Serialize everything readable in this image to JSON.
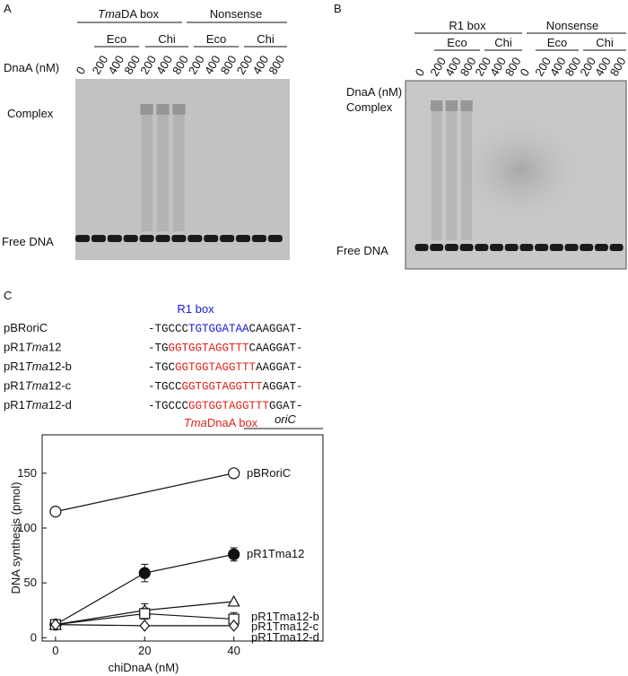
{
  "panel_a": {
    "letter": "A",
    "group_1": {
      "italic": "Tma",
      "rest": "DA box"
    },
    "group_2": "Nonsense",
    "subgroups": [
      "Eco",
      "Chi",
      "Eco",
      "Chi"
    ],
    "axis_label": "DnaA (nM)",
    "lanes": [
      "0",
      "200",
      "400",
      "800",
      "200",
      "400",
      "800",
      "200",
      "400",
      "800",
      "200",
      "400",
      "800"
    ],
    "complex_label": "Complex",
    "free_label": "Free DNA"
  },
  "panel_b": {
    "letter": "B",
    "group_1": "R1 box",
    "group_2": "Nonsense",
    "subgroups": [
      "Eco",
      "Chi",
      "Eco",
      "Chi"
    ],
    "axis_label": "DnaA (nM)",
    "lanes": [
      "0",
      "200",
      "400",
      "800",
      "200",
      "400",
      "800",
      "0",
      "200",
      "400",
      "800",
      "200",
      "400",
      "800"
    ],
    "complex_label": "Complex",
    "free_label": "Free DNA"
  },
  "panel_c": {
    "letter": "C",
    "r1_label": "R1 box",
    "box_label": {
      "italic": "Tma",
      "rest": "DnaA box"
    },
    "rows": [
      {
        "name": [
          "pBRoriC",
          "",
          ""
        ],
        "seq": [
          "-TGCCC",
          "TGTGGATAA",
          "CAAGGAT-"
        ],
        "color": "#1a1ad6"
      },
      {
        "name": [
          "pR1",
          "Tma",
          "12"
        ],
        "seq": [
          "-TG",
          "GGTGGTAGGTTT",
          "CAAGGAT-"
        ],
        "color": "#e0241c"
      },
      {
        "name": [
          "pR1",
          "Tma",
          "12-b"
        ],
        "seq": [
          "-TGC",
          "GGTGGTAGGTTT",
          "AAGGAT-"
        ],
        "color": "#e0241c"
      },
      {
        "name": [
          "pR1",
          "Tma",
          "12-c"
        ],
        "seq": [
          "-TGCC",
          "GGTGGTAGGTTT",
          "AGGAT-"
        ],
        "color": "#e0241c"
      },
      {
        "name": [
          "pR1",
          "Tma",
          "12-d"
        ],
        "seq": [
          "-TGCCC",
          "GGTGGTAGGTTT",
          "GGAT-"
        ],
        "color": "#e0241c"
      }
    ]
  },
  "chart_data": {
    "type": "line",
    "xlabel": "chiDnaA (nM)",
    "ylabel": "DNA synthesis (pmol)",
    "legend_title": "oriC",
    "xlim": [
      -3,
      60
    ],
    "ylim": [
      -3,
      185
    ],
    "xticks": [
      0,
      20,
      40
    ],
    "yticks": [
      0,
      50,
      100,
      150
    ],
    "series": [
      {
        "name": "pBRoriC",
        "marker": "open-circle",
        "x": [
          0,
          40
        ],
        "values": [
          115,
          150
        ],
        "errors": [
          null,
          null
        ]
      },
      {
        "name": "pR1Tma12",
        "marker": "filled-circle",
        "x": [
          0,
          20,
          40
        ],
        "values": [
          12,
          59,
          76
        ],
        "errors": [
          null,
          8,
          6
        ]
      },
      {
        "name": "pR1Tma12-b",
        "marker": "triangle",
        "x": [
          0,
          20,
          40
        ],
        "values": [
          12,
          25,
          33
        ],
        "errors": [
          null,
          6,
          null
        ]
      },
      {
        "name": "pR1Tma12-c",
        "marker": "square",
        "x": [
          0,
          20,
          40
        ],
        "values": [
          12,
          22,
          17
        ],
        "errors": [
          null,
          5,
          6
        ]
      },
      {
        "name": "pR1Tma12-d",
        "marker": "diamond",
        "x": [
          0,
          20,
          40
        ],
        "values": [
          12,
          11,
          11
        ],
        "errors": [
          null,
          null,
          null
        ]
      }
    ]
  }
}
